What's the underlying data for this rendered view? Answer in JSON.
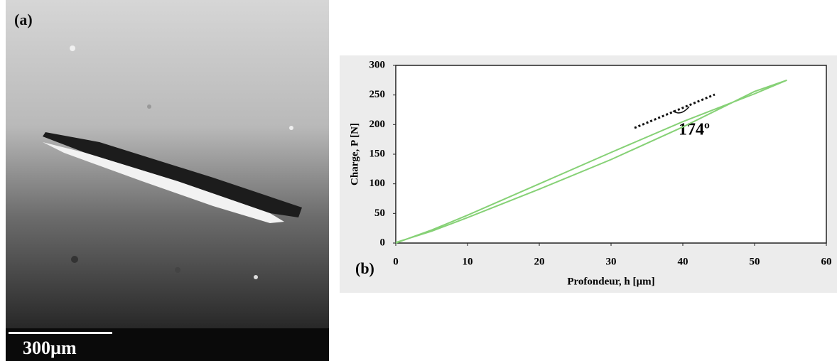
{
  "panel_a": {
    "label": "(a)",
    "scale_bar": "300µm"
  },
  "chart_data": {
    "type": "line",
    "panel_label": "(b)",
    "xlabel": "Profondeur, h [µm]",
    "ylabel": "Charge, P [N]",
    "annotation": "174º",
    "x": [
      0,
      5,
      10,
      20,
      30,
      40,
      50,
      54.5,
      50,
      40,
      30,
      20,
      10,
      5,
      0
    ],
    "values": [
      0,
      22,
      47,
      100,
      153,
      205,
      252,
      275,
      256,
      196,
      141,
      91,
      43,
      20,
      1
    ],
    "color": "#86d176",
    "xlim": [
      0,
      60
    ],
    "xticks": [
      0,
      10,
      20,
      30,
      40,
      50,
      60
    ],
    "ylim": [
      0,
      300
    ],
    "yticks": [
      0,
      50,
      100,
      150,
      200,
      250,
      300
    ]
  }
}
